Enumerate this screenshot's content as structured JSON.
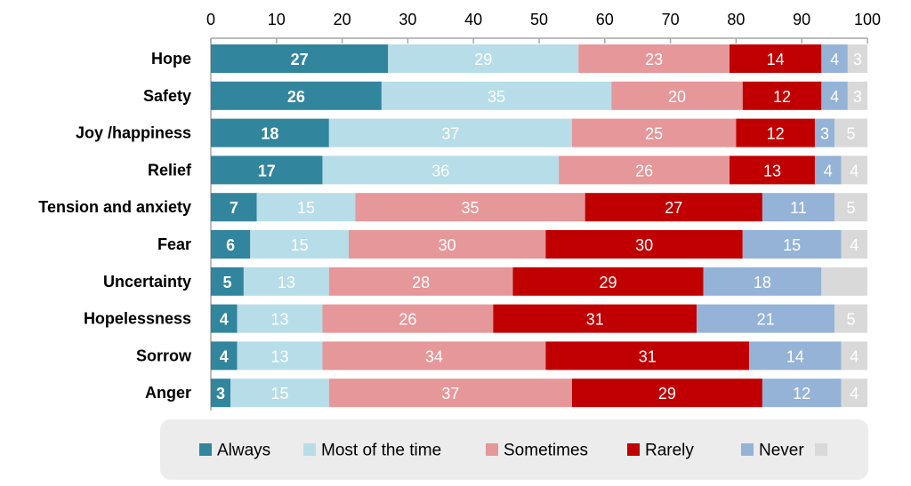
{
  "chart_data": {
    "type": "bar",
    "orientation": "horizontal",
    "stacked": true,
    "xlim": [
      0,
      100
    ],
    "x_ticks": [
      "0",
      "10",
      "20",
      "30",
      "40",
      "50",
      "60",
      "70",
      "80",
      "90",
      "100"
    ],
    "x_axis_position": "top",
    "grid": false,
    "legend_position": "bottom",
    "categories": [
      "Hope",
      "Safety",
      "Joy /happiness",
      "Relief",
      "Tension and anxiety",
      "Fear",
      "Uncertainty",
      "Hopelessness",
      "Sorrow",
      "Anger"
    ],
    "series": [
      {
        "name": "Always",
        "color": "#31859c",
        "bold_labels": true,
        "values": [
          27,
          26,
          18,
          17,
          7,
          6,
          5,
          4,
          4,
          3
        ],
        "labels": [
          "27",
          "26",
          "18",
          "17",
          "7",
          "6",
          "5",
          "4",
          "4",
          "3"
        ]
      },
      {
        "name": "Most of the time",
        "color": "#b7dde8",
        "values": [
          29,
          35,
          37,
          36,
          15,
          15,
          13,
          13,
          13,
          15
        ],
        "labels": [
          "29",
          "35",
          "37",
          "36",
          "15",
          "15",
          "13",
          "13",
          "13",
          "15"
        ]
      },
      {
        "name": "Sometimes",
        "color": "#e6979a",
        "values": [
          23,
          20,
          25,
          26,
          35,
          30,
          28,
          26,
          34,
          37
        ],
        "labels": [
          "23",
          "20",
          "25",
          "26",
          "35",
          "30",
          "28",
          "26",
          "34",
          "37"
        ]
      },
      {
        "name": "Rarely",
        "color": "#c00000",
        "values": [
          14,
          12,
          12,
          13,
          27,
          30,
          29,
          31,
          31,
          29
        ],
        "labels": [
          "14",
          "12",
          "12",
          "13",
          "27",
          "30",
          "29",
          "31",
          "31",
          "29"
        ]
      },
      {
        "name": "Never",
        "color": "#95b3d7",
        "values": [
          4,
          4,
          3,
          4,
          11,
          15,
          18,
          21,
          14,
          12
        ],
        "labels": [
          "4",
          "4",
          "3",
          "4",
          "11",
          "15",
          "18",
          "21",
          "14",
          "12"
        ]
      },
      {
        "name": "",
        "color": "#d9d9d9",
        "values": [
          3,
          3,
          5,
          4,
          5,
          4,
          7,
          5,
          4,
          4
        ],
        "labels": [
          "3",
          "3",
          "5",
          "4",
          "5",
          "4",
          "",
          "5",
          "4",
          "4"
        ]
      }
    ],
    "colors": {
      "axis": "#a6a6a6",
      "legend_background": "#ececec",
      "label_text": "#ffffff",
      "text": "#000000"
    }
  }
}
